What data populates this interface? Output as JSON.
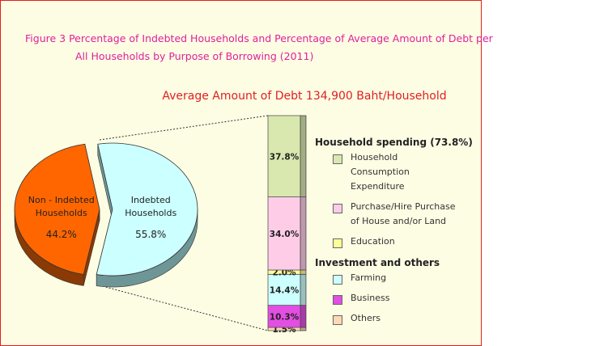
{
  "header": {
    "title": "Figure 3 Percentage of Indebted Households and Percentage of Average Amount of Debt per All Households by Purpose of Borrowing (2011)",
    "subtitle": "Average Amount of Debt 134,900 Baht/Household"
  },
  "chart_data": [
    {
      "type": "pie",
      "categories": [
        "Indebted Households",
        "Non - Indebted Households"
      ],
      "values": [
        55.8,
        44.2
      ],
      "value_labels": [
        "55.8%",
        "44.2%"
      ],
      "colors": [
        "#ccffff",
        "#ff6600"
      ],
      "side_colors": [
        "#6f9696",
        "#8a3a05"
      ],
      "exploded": true
    },
    {
      "type": "bar",
      "stacked": true,
      "categories": [
        null
      ],
      "ylim": [
        0,
        100
      ],
      "groups": [
        {
          "name": "Household spending (73.8%)",
          "series": [
            {
              "name": "Household Consumption Expenditure",
              "color": "#d8e8ae",
              "values": [
                37.8
              ],
              "value_labels": [
                "37.8%"
              ]
            },
            {
              "name": "Purchase/Hire Purchase of House and/or Land",
              "color": "#ffcce8",
              "values": [
                34.0
              ],
              "value_labels": [
                "34.0%"
              ]
            },
            {
              "name": "Education",
              "color": "#ffff99",
              "values": [
                2.0
              ],
              "value_labels": [
                "2.0%"
              ]
            }
          ]
        },
        {
          "name": "Investment and others",
          "series": [
            {
              "name": "Farming",
              "color": "#ccffff",
              "values": [
                14.4
              ],
              "value_labels": [
                "14.4%"
              ]
            },
            {
              "name": "Business",
              "color": "#e34ee3",
              "values": [
                10.3
              ],
              "value_labels": [
                "10.3%"
              ]
            },
            {
              "name": "Others",
              "color": "#ffd9b3",
              "values": [
                1.5
              ],
              "value_labels": [
                "1.5%"
              ]
            }
          ]
        }
      ]
    }
  ]
}
